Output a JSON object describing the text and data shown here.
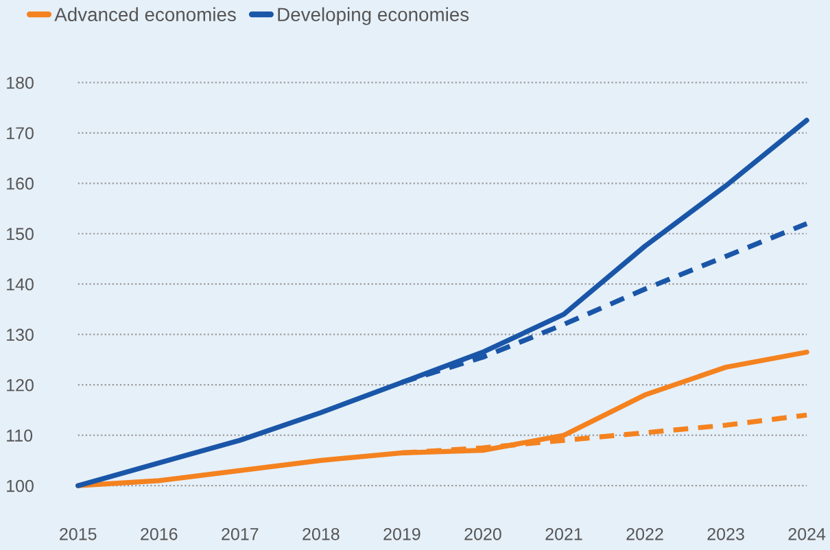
{
  "chart_data": {
    "type": "line",
    "categories": [
      "2015",
      "2016",
      "2017",
      "2018",
      "2019",
      "2020",
      "2021",
      "2022",
      "2023",
      "2024"
    ],
    "series": [
      {
        "name": "Advanced economies",
        "color": "#f4821f",
        "values": [
          100,
          101,
          103,
          105,
          106.5,
          107,
          110,
          118,
          123.5,
          126.5
        ]
      },
      {
        "name": "Developing economies",
        "color": "#1a56a8",
        "values": [
          100,
          104.5,
          109,
          114.5,
          120.5,
          126.5,
          134,
          147.5,
          159.5,
          172.5
        ]
      },
      {
        "color": "#1a56a8",
        "line_style": "dashed",
        "values": [
          null,
          null,
          null,
          null,
          120.5,
          125.5,
          132,
          139,
          145.5,
          152
        ]
      },
      {
        "color": "#f4821f",
        "line_style": "dashed",
        "values": [
          null,
          null,
          null,
          null,
          106.5,
          107.5,
          109,
          110.5,
          112,
          114
        ]
      }
    ],
    "ylim": [
      100,
      180
    ],
    "yticks": [
      100,
      110,
      120,
      130,
      140,
      150,
      160,
      170,
      180
    ],
    "grid": "y",
    "legend": "top left",
    "line_style": "solid"
  }
}
